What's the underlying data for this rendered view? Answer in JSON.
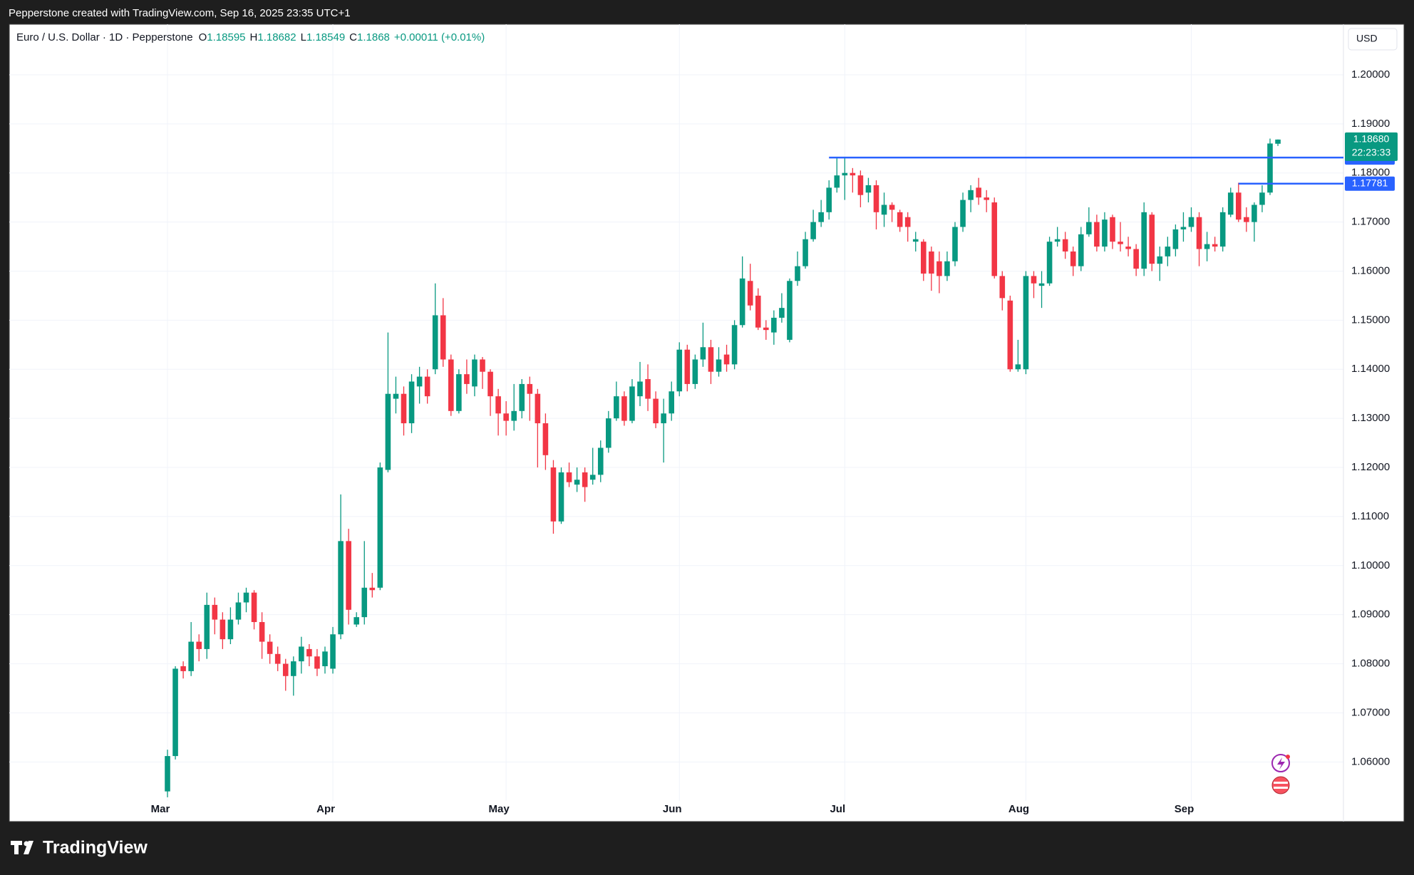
{
  "chart_data": {
    "type": "candlestick",
    "attribution": "Pepperstone created with TradingView.com, Sep 16, 2025 23:35 UTC+1",
    "title": "Euro / U.S. Dollar · 1D · Pepperstone",
    "ohlc_letters": [
      "O",
      "H",
      "L",
      "C"
    ],
    "change": "+0.00011 (+0.01%)",
    "currency": "USD",
    "countdown": "22:23:33",
    "last_price_label": "1.18680",
    "logo": "TradingView",
    "up_color": "#089981",
    "down_color": "#f23645",
    "level_color": "#2962ff",
    "grid": true,
    "ylim": [
      1.048,
      1.2103
    ],
    "yticks": [
      {
        "value": 1.06,
        "label": "1.06000"
      },
      {
        "value": 1.07,
        "label": "1.07000"
      },
      {
        "value": 1.08,
        "label": "1.08000"
      },
      {
        "value": 1.09,
        "label": "1.09000"
      },
      {
        "value": 1.1,
        "label": "1.10000"
      },
      {
        "value": 1.11,
        "label": "1.11000"
      },
      {
        "value": 1.12,
        "label": "1.12000"
      },
      {
        "value": 1.13,
        "label": "1.13000"
      },
      {
        "value": 1.14,
        "label": "1.14000"
      },
      {
        "value": 1.15,
        "label": "1.15000"
      },
      {
        "value": 1.16,
        "label": "1.16000"
      },
      {
        "value": 1.17,
        "label": "1.17000"
      },
      {
        "value": 1.18,
        "label": "1.18000"
      },
      {
        "value": 1.19,
        "label": "1.19000"
      },
      {
        "value": 1.2,
        "label": "1.20000"
      }
    ],
    "xticks": [
      {
        "value": 0,
        "label": "Mar"
      },
      {
        "value": 21,
        "label": "Apr"
      },
      {
        "value": 43,
        "label": "May"
      },
      {
        "value": 65,
        "label": "Jun"
      },
      {
        "value": 86,
        "label": "Jul"
      },
      {
        "value": 109,
        "label": "Aug"
      },
      {
        "value": 130,
        "label": "Sep"
      }
    ],
    "levels": [
      {
        "value": 1.18314,
        "from": 84
      },
      {
        "value": 1.17781,
        "from": 136
      }
    ],
    "candles": [
      [
        1.054,
        1.0625,
        1.0528,
        1.0612
      ],
      [
        1.0612,
        1.0795,
        1.0605,
        1.079
      ],
      [
        1.0795,
        1.0805,
        1.077,
        1.0785
      ],
      [
        1.0785,
        1.0885,
        1.0775,
        1.0845
      ],
      [
        1.0845,
        1.086,
        1.0805,
        1.083
      ],
      [
        1.083,
        1.0945,
        1.081,
        1.092
      ],
      [
        1.092,
        1.0935,
        1.086,
        1.089
      ],
      [
        1.089,
        1.0905,
        1.083,
        1.085
      ],
      [
        1.085,
        1.0915,
        1.084,
        1.089
      ],
      [
        1.089,
        1.0945,
        1.088,
        1.0925
      ],
      [
        1.0925,
        1.0955,
        1.0905,
        1.0945
      ],
      [
        1.0945,
        1.095,
        1.087,
        1.0885
      ],
      [
        1.0885,
        1.0905,
        1.081,
        1.0845
      ],
      [
        1.0845,
        1.086,
        1.08,
        1.082
      ],
      [
        1.082,
        1.0835,
        1.0785,
        1.08
      ],
      [
        1.08,
        1.081,
        1.0745,
        1.0775
      ],
      [
        1.0775,
        1.0815,
        1.0735,
        1.0805
      ],
      [
        1.0805,
        1.0855,
        1.078,
        1.0835
      ],
      [
        1.083,
        1.084,
        1.0795,
        1.0815
      ],
      [
        1.0815,
        1.083,
        1.0775,
        1.079
      ],
      [
        1.0795,
        1.0835,
        1.078,
        1.0825
      ],
      [
        1.079,
        1.0875,
        1.078,
        1.086
      ],
      [
        1.086,
        1.1145,
        1.085,
        1.105
      ],
      [
        1.105,
        1.1075,
        1.088,
        1.091
      ],
      [
        1.088,
        1.0905,
        1.0875,
        1.0895
      ],
      [
        1.0895,
        1.105,
        1.088,
        1.0955
      ],
      [
        1.0955,
        1.0985,
        1.0935,
        1.095
      ],
      [
        1.0955,
        1.121,
        1.095,
        1.12
      ],
      [
        1.1195,
        1.1475,
        1.119,
        1.135
      ],
      [
        1.134,
        1.1385,
        1.131,
        1.135
      ],
      [
        1.135,
        1.1365,
        1.1265,
        1.129
      ],
      [
        1.129,
        1.139,
        1.127,
        1.1375
      ],
      [
        1.1365,
        1.1405,
        1.133,
        1.1385
      ],
      [
        1.1385,
        1.14,
        1.133,
        1.1345
      ],
      [
        1.14,
        1.1575,
        1.139,
        1.151
      ],
      [
        1.151,
        1.1545,
        1.1405,
        1.142
      ],
      [
        1.142,
        1.143,
        1.1305,
        1.1315
      ],
      [
        1.1315,
        1.14,
        1.131,
        1.139
      ],
      [
        1.139,
        1.142,
        1.135,
        1.137
      ],
      [
        1.1365,
        1.143,
        1.1345,
        1.142
      ],
      [
        1.142,
        1.1425,
        1.136,
        1.1395
      ],
      [
        1.1395,
        1.14,
        1.1305,
        1.1345
      ],
      [
        1.1345,
        1.136,
        1.1265,
        1.131
      ],
      [
        1.131,
        1.1335,
        1.1265,
        1.1295
      ],
      [
        1.1295,
        1.137,
        1.1275,
        1.1315
      ],
      [
        1.1315,
        1.138,
        1.13,
        1.137
      ],
      [
        1.137,
        1.1385,
        1.1295,
        1.135
      ],
      [
        1.135,
        1.136,
        1.12,
        1.129
      ],
      [
        1.129,
        1.131,
        1.1195,
        1.1225
      ],
      [
        1.12,
        1.1215,
        1.1065,
        1.109
      ],
      [
        1.109,
        1.12,
        1.1085,
        1.119
      ],
      [
        1.119,
        1.121,
        1.116,
        1.117
      ],
      [
        1.1165,
        1.12,
        1.115,
        1.1175
      ],
      [
        1.119,
        1.12,
        1.113,
        1.116
      ],
      [
        1.1175,
        1.124,
        1.1165,
        1.1185
      ],
      [
        1.1185,
        1.1255,
        1.117,
        1.124
      ],
      [
        1.124,
        1.1315,
        1.123,
        1.13
      ],
      [
        1.13,
        1.1375,
        1.1295,
        1.1345
      ],
      [
        1.1345,
        1.1355,
        1.1285,
        1.1295
      ],
      [
        1.1295,
        1.138,
        1.129,
        1.1365
      ],
      [
        1.1345,
        1.1415,
        1.1325,
        1.1375
      ],
      [
        1.138,
        1.141,
        1.1315,
        1.134
      ],
      [
        1.134,
        1.1355,
        1.128,
        1.129
      ],
      [
        1.129,
        1.134,
        1.121,
        1.131
      ],
      [
        1.131,
        1.1375,
        1.1295,
        1.1355
      ],
      [
        1.1355,
        1.1455,
        1.1345,
        1.144
      ],
      [
        1.144,
        1.145,
        1.1355,
        1.137
      ],
      [
        1.137,
        1.143,
        1.136,
        1.142
      ],
      [
        1.142,
        1.1495,
        1.1405,
        1.1445
      ],
      [
        1.1445,
        1.146,
        1.137,
        1.1395
      ],
      [
        1.1395,
        1.1445,
        1.1385,
        1.142
      ],
      [
        1.143,
        1.145,
        1.1395,
        1.141
      ],
      [
        1.141,
        1.15,
        1.14,
        1.149
      ],
      [
        1.149,
        1.163,
        1.1485,
        1.1585
      ],
      [
        1.158,
        1.1615,
        1.152,
        1.153
      ],
      [
        1.155,
        1.1565,
        1.148,
        1.1485
      ],
      [
        1.1485,
        1.15,
        1.146,
        1.148
      ],
      [
        1.1475,
        1.152,
        1.145,
        1.1505
      ],
      [
        1.1505,
        1.1555,
        1.1495,
        1.1525
      ],
      [
        1.146,
        1.1585,
        1.1455,
        1.158
      ],
      [
        1.158,
        1.164,
        1.157,
        1.161
      ],
      [
        1.161,
        1.168,
        1.1605,
        1.1665
      ],
      [
        1.1665,
        1.1725,
        1.166,
        1.17
      ],
      [
        1.17,
        1.1745,
        1.169,
        1.172
      ],
      [
        1.172,
        1.1785,
        1.1705,
        1.177
      ],
      [
        1.177,
        1.183,
        1.176,
        1.1795
      ],
      [
        1.1795,
        1.183,
        1.1745,
        1.18
      ],
      [
        1.18,
        1.181,
        1.176,
        1.1795
      ],
      [
        1.1795,
        1.1805,
        1.173,
        1.1755
      ],
      [
        1.176,
        1.179,
        1.174,
        1.1775
      ],
      [
        1.1775,
        1.1785,
        1.1685,
        1.172
      ],
      [
        1.1715,
        1.176,
        1.169,
        1.1735
      ],
      [
        1.1735,
        1.174,
        1.17,
        1.1725
      ],
      [
        1.172,
        1.1725,
        1.168,
        1.169
      ],
      [
        1.171,
        1.172,
        1.166,
        1.169
      ],
      [
        1.166,
        1.168,
        1.164,
        1.1665
      ],
      [
        1.166,
        1.1665,
        1.158,
        1.1595
      ],
      [
        1.164,
        1.165,
        1.156,
        1.1595
      ],
      [
        1.162,
        1.164,
        1.1555,
        1.159
      ],
      [
        1.159,
        1.164,
        1.158,
        1.162
      ],
      [
        1.162,
        1.17,
        1.161,
        1.169
      ],
      [
        1.169,
        1.176,
        1.168,
        1.1745
      ],
      [
        1.1745,
        1.1775,
        1.172,
        1.1765
      ],
      [
        1.177,
        1.179,
        1.1735,
        1.175
      ],
      [
        1.175,
        1.1765,
        1.172,
        1.1745
      ],
      [
        1.174,
        1.175,
        1.1585,
        1.159
      ],
      [
        1.159,
        1.16,
        1.152,
        1.1545
      ],
      [
        1.154,
        1.155,
        1.1395,
        1.14
      ],
      [
        1.14,
        1.146,
        1.1395,
        1.141
      ],
      [
        1.14,
        1.16,
        1.139,
        1.159
      ],
      [
        1.159,
        1.16,
        1.1545,
        1.1575
      ],
      [
        1.157,
        1.16,
        1.1525,
        1.1575
      ],
      [
        1.1575,
        1.167,
        1.157,
        1.166
      ],
      [
        1.166,
        1.169,
        1.165,
        1.1665
      ],
      [
        1.1665,
        1.168,
        1.1625,
        1.164
      ],
      [
        1.164,
        1.165,
        1.159,
        1.161
      ],
      [
        1.161,
        1.169,
        1.16,
        1.1675
      ],
      [
        1.1675,
        1.173,
        1.167,
        1.17
      ],
      [
        1.17,
        1.1715,
        1.164,
        1.165
      ],
      [
        1.165,
        1.172,
        1.164,
        1.1705
      ],
      [
        1.171,
        1.1715,
        1.1645,
        1.166
      ],
      [
        1.166,
        1.17,
        1.164,
        1.1655
      ],
      [
        1.165,
        1.167,
        1.163,
        1.1645
      ],
      [
        1.1645,
        1.1655,
        1.159,
        1.1605
      ],
      [
        1.1605,
        1.174,
        1.159,
        1.172
      ],
      [
        1.1715,
        1.172,
        1.16,
        1.1615
      ],
      [
        1.1615,
        1.165,
        1.158,
        1.163
      ],
      [
        1.163,
        1.167,
        1.161,
        1.165
      ],
      [
        1.1645,
        1.1695,
        1.163,
        1.1685
      ],
      [
        1.1685,
        1.172,
        1.166,
        1.169
      ],
      [
        1.169,
        1.173,
        1.168,
        1.171
      ],
      [
        1.171,
        1.172,
        1.161,
        1.1645
      ],
      [
        1.1645,
        1.168,
        1.162,
        1.1655
      ],
      [
        1.1655,
        1.167,
        1.164,
        1.165
      ],
      [
        1.165,
        1.173,
        1.164,
        1.172
      ],
      [
        1.1715,
        1.177,
        1.171,
        1.176
      ],
      [
        1.176,
        1.178,
        1.17,
        1.1705
      ],
      [
        1.171,
        1.173,
        1.168,
        1.17
      ],
      [
        1.17,
        1.174,
        1.166,
        1.1735
      ],
      [
        1.1735,
        1.1775,
        1.172,
        1.176
      ],
      [
        1.176,
        1.187,
        1.1755,
        1.186
      ],
      [
        1.18595,
        1.18682,
        1.18549,
        1.1868
      ]
    ]
  }
}
